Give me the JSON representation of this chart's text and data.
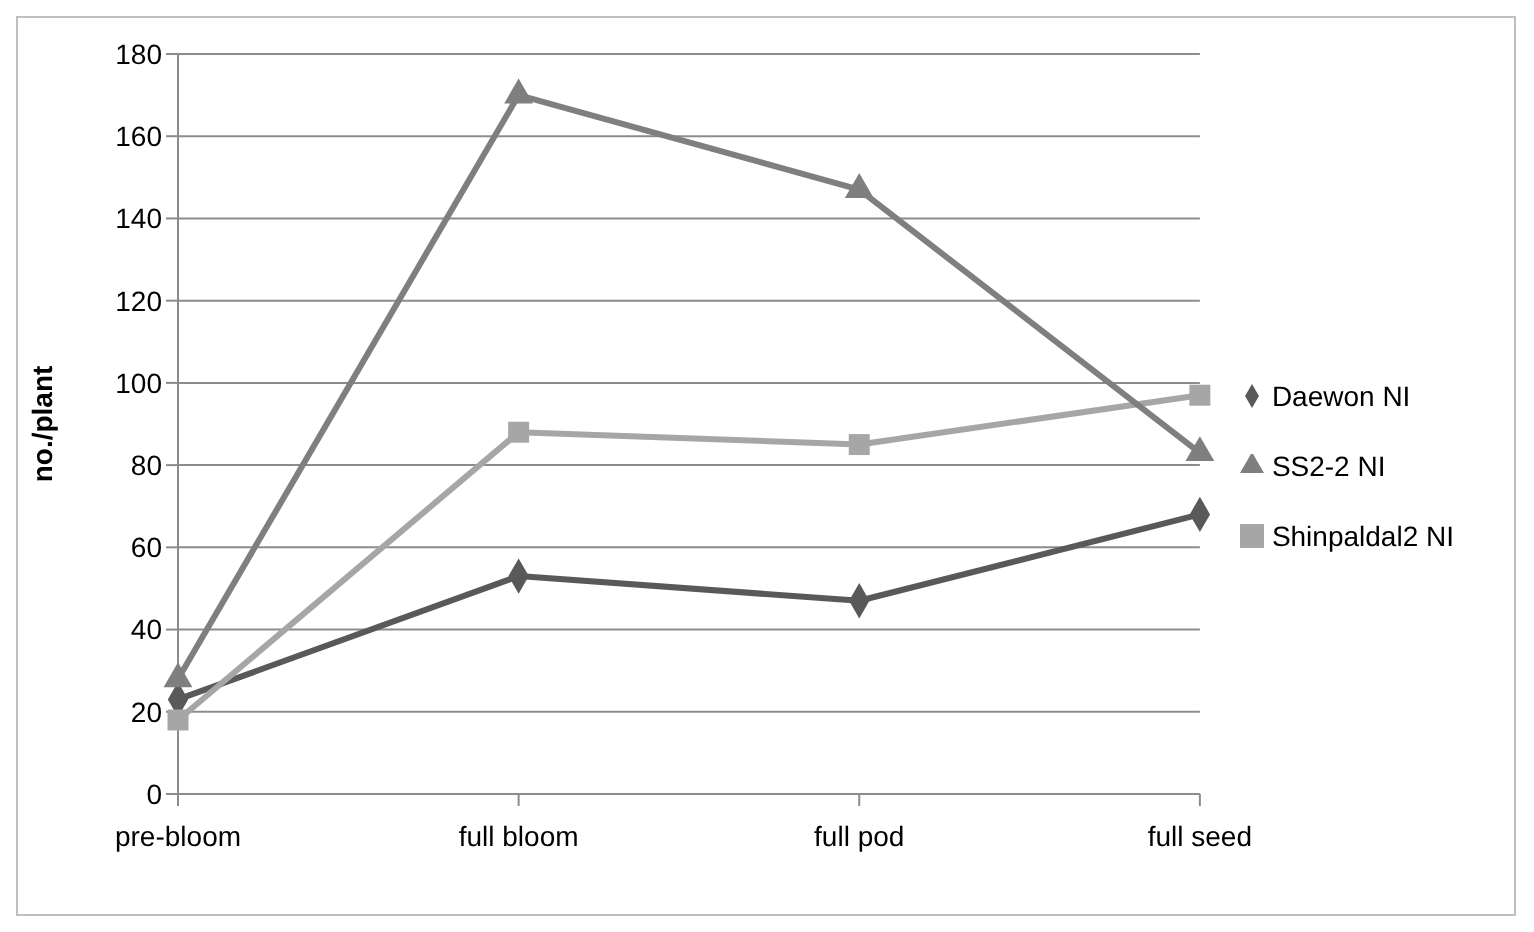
{
  "chart_data": {
    "type": "line",
    "ylabel": "no./plant",
    "categories": [
      "pre-bloom",
      "full bloom",
      "full pod",
      "full seed"
    ],
    "series": [
      {
        "name": "Daewon NI",
        "color": "#595959",
        "marker": "diamond",
        "values": [
          23,
          53,
          47,
          68
        ]
      },
      {
        "name": "Shinpaldal2 NI",
        "color": "#a6a6a6",
        "marker": "square",
        "values": [
          18,
          88,
          85,
          97
        ]
      },
      {
        "name": "SS2-2 NI",
        "color": "#7f7f7f",
        "marker": "triangle",
        "values": [
          28,
          170,
          147,
          83
        ]
      }
    ],
    "ylim": [
      0,
      180
    ],
    "yticks": [
      0,
      20,
      40,
      60,
      80,
      100,
      120,
      140,
      160,
      180
    ],
    "grid": "y",
    "legend": "right",
    "line_style": "solid"
  }
}
